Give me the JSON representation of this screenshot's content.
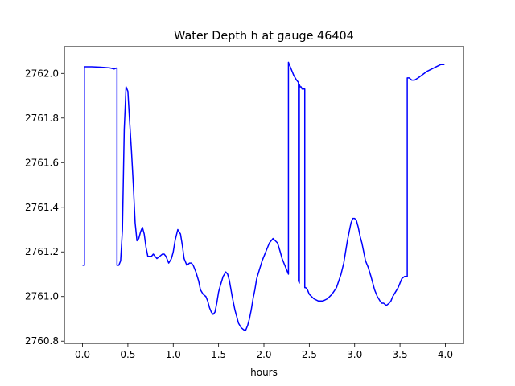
{
  "chart_data": {
    "type": "line",
    "title": "Water Depth h at gauge 46404",
    "xlabel": "hours",
    "ylabel": "",
    "xlim": [
      -0.2,
      4.2
    ],
    "ylim": [
      2760.79,
      2762.12
    ],
    "xticks": [
      0.0,
      0.5,
      1.0,
      1.5,
      2.0,
      2.5,
      3.0,
      3.5,
      4.0
    ],
    "xtick_labels": [
      "0.0",
      "0.5",
      "1.0",
      "1.5",
      "2.0",
      "2.5",
      "3.0",
      "3.5",
      "4.0"
    ],
    "yticks": [
      2760.8,
      2761.0,
      2761.2,
      2761.4,
      2761.6,
      2761.8,
      2762.0
    ],
    "ytick_labels": [
      "2760.8",
      "2761.0",
      "2761.2",
      "2761.4",
      "2761.6",
      "2761.8",
      "2762.0"
    ],
    "grid": false,
    "legend": "none",
    "line_color": "#0000ff",
    "series": [
      {
        "x": [
          0.0,
          0.02,
          0.02,
          0.1,
          0.2,
          0.3,
          0.35,
          0.38,
          0.38,
          0.4,
          0.42,
          0.44,
          0.46,
          0.48,
          0.5,
          0.52,
          0.54,
          0.56,
          0.58,
          0.6,
          0.62,
          0.64,
          0.66,
          0.68,
          0.7,
          0.72,
          0.74,
          0.76,
          0.78,
          0.8,
          0.82,
          0.85,
          0.88,
          0.9,
          0.92,
          0.95,
          0.98,
          1.0,
          1.02,
          1.05,
          1.08,
          1.1,
          1.12,
          1.15,
          1.18,
          1.2,
          1.22,
          1.25,
          1.28,
          1.3,
          1.33,
          1.36,
          1.38,
          1.4,
          1.42,
          1.44,
          1.46,
          1.48,
          1.5,
          1.52,
          1.55,
          1.58,
          1.6,
          1.62,
          1.65,
          1.68,
          1.7,
          1.72,
          1.75,
          1.78,
          1.8,
          1.82,
          1.84,
          1.86,
          1.88,
          1.9,
          1.92,
          1.95,
          1.98,
          2.0,
          2.03,
          2.06,
          2.1,
          2.15,
          2.18,
          2.2,
          2.22,
          2.25,
          2.27,
          2.27,
          2.3,
          2.33,
          2.36,
          2.38,
          2.38,
          2.39,
          2.39,
          2.4,
          2.41,
          2.41,
          2.42,
          2.43,
          2.45,
          2.45,
          2.45,
          2.46,
          2.48,
          2.5,
          2.55,
          2.6,
          2.65,
          2.7,
          2.75,
          2.8,
          2.85,
          2.88,
          2.9,
          2.92,
          2.94,
          2.96,
          2.98,
          3.0,
          3.02,
          3.04,
          3.06,
          3.08,
          3.1,
          3.12,
          3.15,
          3.18,
          3.2,
          3.22,
          3.25,
          3.28,
          3.3,
          3.32,
          3.35,
          3.38,
          3.4,
          3.42,
          3.45,
          3.48,
          3.5,
          3.52,
          3.55,
          3.58,
          3.58,
          3.6,
          3.63,
          3.66,
          3.7,
          3.8,
          3.9,
          3.95,
          3.99
        ],
        "y": [
          2761.14,
          2761.14,
          2762.03,
          2762.03,
          2762.028,
          2762.025,
          2762.02,
          2762.025,
          2761.14,
          2761.14,
          2761.16,
          2761.3,
          2761.75,
          2761.94,
          2761.92,
          2761.78,
          2761.65,
          2761.5,
          2761.33,
          2761.25,
          2761.26,
          2761.29,
          2761.31,
          2761.28,
          2761.22,
          2761.18,
          2761.18,
          2761.18,
          2761.19,
          2761.18,
          2761.17,
          2761.18,
          2761.19,
          2761.19,
          2761.18,
          2761.15,
          2761.17,
          2761.2,
          2761.25,
          2761.3,
          2761.28,
          2761.23,
          2761.17,
          2761.14,
          2761.15,
          2761.15,
          2761.14,
          2761.11,
          2761.07,
          2761.03,
          2761.01,
          2761.0,
          2760.98,
          2760.95,
          2760.93,
          2760.92,
          2760.93,
          2760.97,
          2761.02,
          2761.05,
          2761.09,
          2761.11,
          2761.1,
          2761.07,
          2761.0,
          2760.94,
          2760.91,
          2760.88,
          2760.86,
          2760.85,
          2760.85,
          2760.87,
          2760.9,
          2760.94,
          2760.99,
          2761.03,
          2761.08,
          2761.12,
          2761.16,
          2761.18,
          2761.21,
          2761.24,
          2761.26,
          2761.24,
          2761.2,
          2761.17,
          2761.15,
          2761.12,
          2761.1,
          2762.05,
          2762.02,
          2761.99,
          2761.97,
          2761.96,
          2761.07,
          2761.06,
          2761.95,
          2761.94,
          2761.94,
          2761.94,
          2761.93,
          2761.93,
          2761.93,
          2761.92,
          2761.04,
          2761.04,
          2761.03,
          2761.01,
          2760.99,
          2760.98,
          2760.98,
          2760.99,
          2761.01,
          2761.04,
          2761.1,
          2761.15,
          2761.2,
          2761.25,
          2761.29,
          2761.33,
          2761.35,
          2761.35,
          2761.34,
          2761.31,
          2761.27,
          2761.24,
          2761.2,
          2761.16,
          2761.13,
          2761.09,
          2761.06,
          2761.03,
          2761.0,
          2760.98,
          2760.97,
          2760.97,
          2760.96,
          2760.97,
          2760.98,
          2761.0,
          2761.02,
          2761.04,
          2761.06,
          2761.08,
          2761.09,
          2761.09,
          2761.98,
          2761.98,
          2761.97,
          2761.97,
          2761.98,
          2762.01,
          2762.03,
          2762.04,
          2762.04
        ]
      }
    ]
  }
}
